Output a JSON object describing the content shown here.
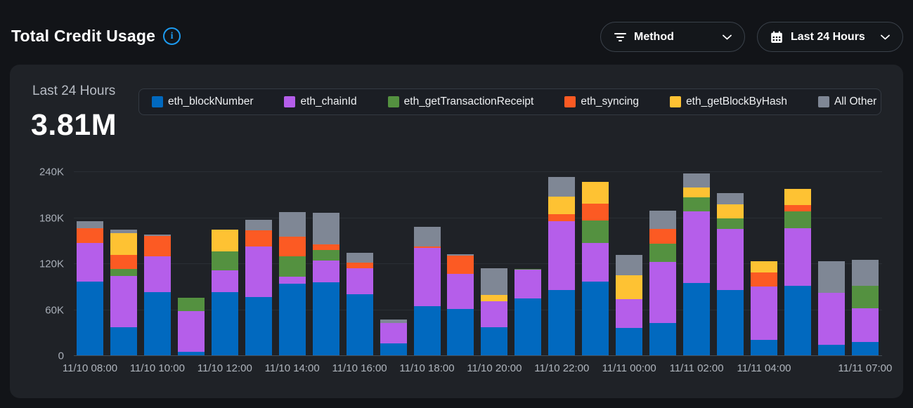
{
  "header": {
    "title": "Total Credit Usage",
    "filters": {
      "method": {
        "label": "Method",
        "icon": "filter-lines"
      },
      "time_range": {
        "label": "Last 24 Hours",
        "icon": "calendar"
      }
    }
  },
  "panel": {
    "period_label": "Last 24 Hours",
    "total_value": "3.81M"
  },
  "colors": {
    "accent_info": "#1d9bf0",
    "page_bg": "#121418",
    "panel_bg": "#1f2227",
    "series": {
      "eth_blockNumber": "#0169bf",
      "eth_chainId": "#b55eea",
      "eth_getTransactionReceipt": "#549140",
      "eth_syncing": "#fc5a23",
      "eth_getBlockByHash": "#fec233",
      "All Other": "#7f8795"
    }
  },
  "chart_data": {
    "type": "bar",
    "stacked": true,
    "title": "Total Credit Usage",
    "xlabel": "",
    "ylabel": "",
    "ylim": [
      0,
      240000
    ],
    "yticks": [
      "0",
      "60K",
      "120K",
      "180K",
      "240K"
    ],
    "grid": true,
    "legend_position": "top",
    "categories": [
      "11/10 08:00",
      "11/10 09:00",
      "11/10 10:00",
      "11/10 11:00",
      "11/10 12:00",
      "11/10 13:00",
      "11/10 14:00",
      "11/10 15:00",
      "11/10 16:00",
      "11/10 17:00",
      "11/10 18:00",
      "11/10 19:00",
      "11/10 20:00",
      "11/10 21:00",
      "11/10 22:00",
      "11/10 23:00",
      "11/11 00:00",
      "11/11 01:00",
      "11/11 02:00",
      "11/11 03:00",
      "11/11 04:00",
      "11/11 05:00",
      "11/11 06:00",
      "11/11 07:00"
    ],
    "visible_ticks": [
      {
        "index": 0,
        "label": "11/10 08:00"
      },
      {
        "index": 2,
        "label": "11/10 10:00"
      },
      {
        "index": 4,
        "label": "11/10 12:00"
      },
      {
        "index": 6,
        "label": "11/10 14:00"
      },
      {
        "index": 8,
        "label": "11/10 16:00"
      },
      {
        "index": 10,
        "label": "11/10 18:00"
      },
      {
        "index": 12,
        "label": "11/10 20:00"
      },
      {
        "index": 14,
        "label": "11/10 22:00"
      },
      {
        "index": 16,
        "label": "11/11 00:00"
      },
      {
        "index": 18,
        "label": "11/11 02:00"
      },
      {
        "index": 20,
        "label": "11/11 04:00"
      },
      {
        "index": 23,
        "label": "11/11 07:00"
      }
    ],
    "series": [
      {
        "name": "eth_blockNumber",
        "color": "#0169bf",
        "values": [
          96000,
          37000,
          82000,
          5000,
          82000,
          76000,
          93000,
          95000,
          80000,
          16000,
          64000,
          60000,
          37000,
          74000,
          85000,
          96000,
          36000,
          42000,
          94000,
          85000,
          20000,
          91000,
          14000,
          17000
        ]
      },
      {
        "name": "eth_chainId",
        "color": "#b55eea",
        "values": [
          50000,
          67000,
          47000,
          53000,
          28000,
          66000,
          9000,
          28000,
          34000,
          27000,
          76000,
          46000,
          34000,
          38000,
          90000,
          50000,
          38000,
          80000,
          93000,
          80000,
          70000,
          75000,
          68000,
          44000
        ]
      },
      {
        "name": "eth_getTransactionReceipt",
        "color": "#549140",
        "values": [
          0,
          9000,
          0,
          17000,
          25000,
          0,
          27000,
          14000,
          0,
          0,
          0,
          0,
          0,
          1000,
          0,
          29000,
          0,
          24000,
          18000,
          14000,
          0,
          22000,
          0,
          29000
        ]
      },
      {
        "name": "eth_syncing",
        "color": "#fc5a23",
        "values": [
          19000,
          18000,
          27000,
          0,
          0,
          21000,
          26000,
          7000,
          7000,
          0,
          2000,
          24000,
          0,
          0,
          9000,
          22000,
          0,
          19000,
          0,
          0,
          18000,
          8000,
          0,
          0
        ]
      },
      {
        "name": "eth_getBlockByHash",
        "color": "#fec233",
        "values": [
          0,
          28000,
          0,
          0,
          28000,
          0,
          0,
          0,
          0,
          0,
          0,
          0,
          8000,
          0,
          23000,
          28000,
          31000,
          0,
          13000,
          18000,
          15000,
          21000,
          0,
          0
        ]
      },
      {
        "name": "All Other",
        "color": "#7f8795",
        "values": [
          9000,
          5000,
          2000,
          0,
          0,
          14000,
          32000,
          41000,
          13000,
          5000,
          26000,
          2000,
          35000,
          0,
          26000,
          0,
          27000,
          24000,
          18000,
          15000,
          0,
          0,
          41000,
          34000
        ]
      }
    ]
  }
}
